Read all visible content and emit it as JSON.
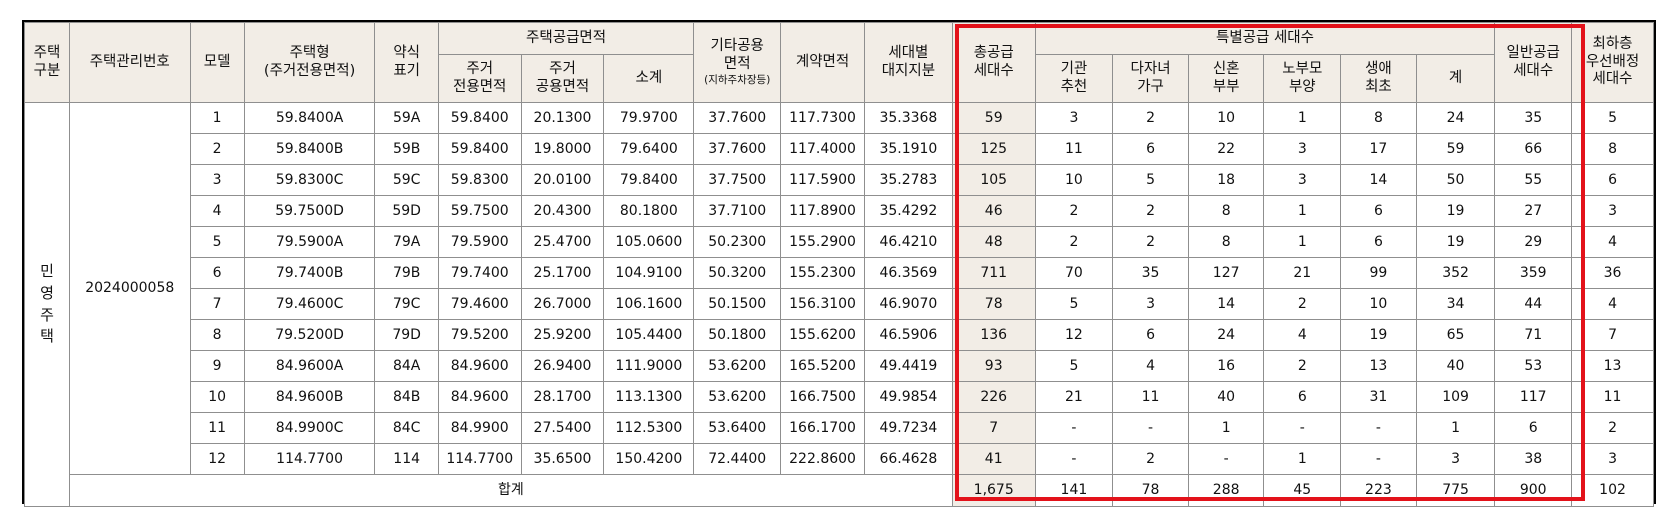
{
  "headers": {
    "housing_type": "주택\n구분",
    "mgmt_no": "주택관리번호",
    "model": "모델",
    "housing_form": "주택형\n(주거전용면적)",
    "abbr": "약식\n표기",
    "supply_area": "주택공급면적",
    "res_exclusive": "주거\n전용면적",
    "res_common": "주거\n공용면적",
    "subtotal": "소계",
    "other_common": "기타공용\n면적",
    "other_common_note": "(지하주차장등)",
    "contract_area": "계약면적",
    "land_share": "세대별\n대지지분",
    "total_supply": "총공급\n세대수",
    "special_supply": "특별공급  세대수",
    "institution": "기관\n추천",
    "multi_child": "다자녀\n가구",
    "newlywed": "신혼\n부부",
    "elderly_parent": "노부모\n부양",
    "first_life": "생애\n최초",
    "special_total": "계",
    "general_supply": "일반공급\n세대수",
    "lowest_floor": "최하층\n우선배정\n세대수"
  },
  "housing_category": [
    "민",
    "영",
    "주",
    "택"
  ],
  "mgmt_number": "2024000058",
  "rows": [
    [
      "1",
      "59.8400A",
      "59A",
      "59.8400",
      "20.1300",
      "79.9700",
      "37.7600",
      "117.7300",
      "35.3368",
      "59",
      "3",
      "2",
      "10",
      "1",
      "8",
      "24",
      "35",
      "5"
    ],
    [
      "2",
      "59.8400B",
      "59B",
      "59.8400",
      "19.8000",
      "79.6400",
      "37.7600",
      "117.4000",
      "35.1910",
      "125",
      "11",
      "6",
      "22",
      "3",
      "17",
      "59",
      "66",
      "8"
    ],
    [
      "3",
      "59.8300C",
      "59C",
      "59.8300",
      "20.0100",
      "79.8400",
      "37.7500",
      "117.5900",
      "35.2783",
      "105",
      "10",
      "5",
      "18",
      "3",
      "14",
      "50",
      "55",
      "6"
    ],
    [
      "4",
      "59.7500D",
      "59D",
      "59.7500",
      "20.4300",
      "80.1800",
      "37.7100",
      "117.8900",
      "35.4292",
      "46",
      "2",
      "2",
      "8",
      "1",
      "6",
      "19",
      "27",
      "3"
    ],
    [
      "5",
      "79.5900A",
      "79A",
      "79.5900",
      "25.4700",
      "105.0600",
      "50.2300",
      "155.2900",
      "46.4210",
      "48",
      "2",
      "2",
      "8",
      "1",
      "6",
      "19",
      "29",
      "4"
    ],
    [
      "6",
      "79.7400B",
      "79B",
      "79.7400",
      "25.1700",
      "104.9100",
      "50.3200",
      "155.2300",
      "46.3569",
      "711",
      "70",
      "35",
      "127",
      "21",
      "99",
      "352",
      "359",
      "36"
    ],
    [
      "7",
      "79.4600C",
      "79C",
      "79.4600",
      "26.7000",
      "106.1600",
      "50.1500",
      "156.3100",
      "46.9070",
      "78",
      "5",
      "3",
      "14",
      "2",
      "10",
      "34",
      "44",
      "4"
    ],
    [
      "8",
      "79.5200D",
      "79D",
      "79.5200",
      "25.9200",
      "105.4400",
      "50.1800",
      "155.6200",
      "46.5906",
      "136",
      "12",
      "6",
      "24",
      "4",
      "19",
      "65",
      "71",
      "7"
    ],
    [
      "9",
      "84.9600A",
      "84A",
      "84.9600",
      "26.9400",
      "111.9000",
      "53.6200",
      "165.5200",
      "49.4419",
      "93",
      "5",
      "4",
      "16",
      "2",
      "13",
      "40",
      "53",
      "13"
    ],
    [
      "10",
      "84.9600B",
      "84B",
      "84.9600",
      "28.1700",
      "113.1300",
      "53.6200",
      "166.7500",
      "49.9854",
      "226",
      "21",
      "11",
      "40",
      "6",
      "31",
      "109",
      "117",
      "11"
    ],
    [
      "11",
      "84.9900C",
      "84C",
      "84.9900",
      "27.5400",
      "112.5300",
      "53.6400",
      "166.1700",
      "49.7234",
      "7",
      "-",
      "-",
      "1",
      "-",
      "-",
      "1",
      "6",
      "2"
    ],
    [
      "12",
      "114.7700",
      "114",
      "114.7700",
      "35.6500",
      "150.4200",
      "72.4400",
      "222.8600",
      "66.4628",
      "41",
      "-",
      "2",
      "-",
      "1",
      "-",
      "3",
      "38",
      "3"
    ]
  ],
  "total": {
    "label": "합계",
    "values": [
      "1,675",
      "141",
      "78",
      "288",
      "45",
      "223",
      "775",
      "900",
      "102"
    ]
  },
  "colors": {
    "header_bg": "#f2ede6",
    "highlight_border": "#e3121a",
    "grid": "#8f8f8f"
  }
}
